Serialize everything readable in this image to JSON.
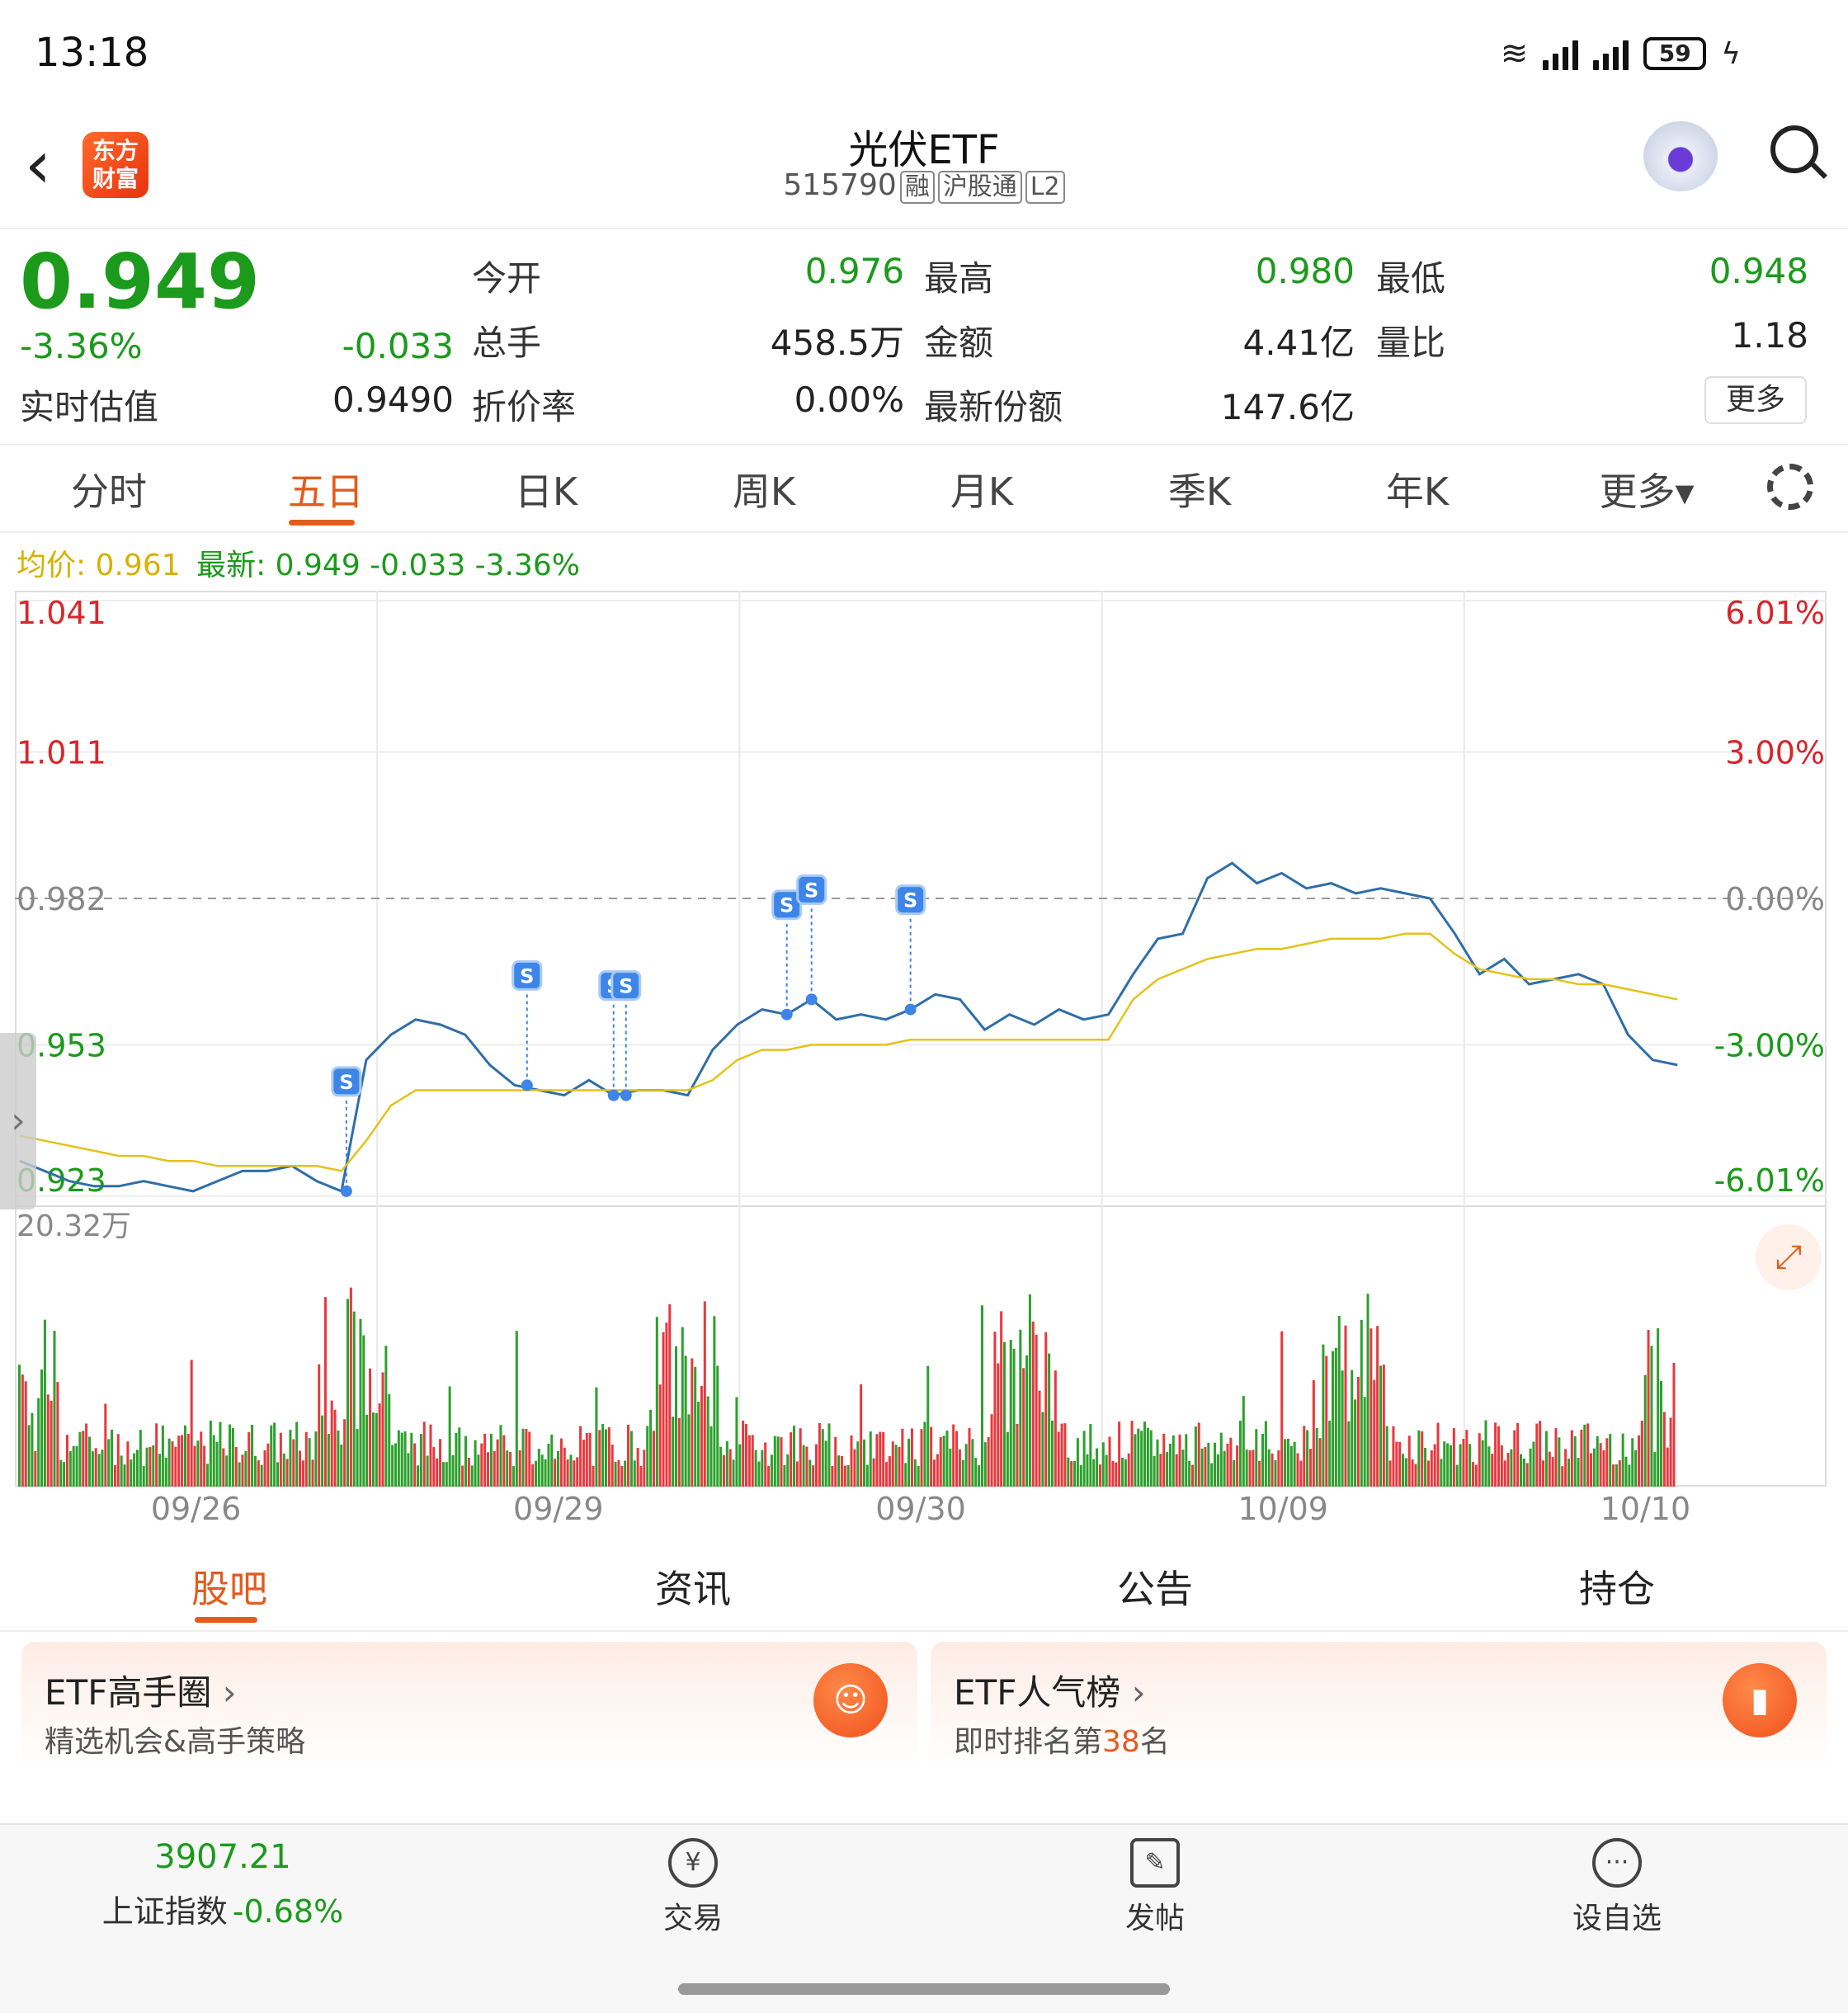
{
  "status_bar": {
    "time": "13:18",
    "battery": "59"
  },
  "header": {
    "logo_line1": "东方",
    "logo_line2": "财富",
    "title": "光伏ETF",
    "code": "515790",
    "tags": [
      "融",
      "沪股通",
      "L2"
    ]
  },
  "quote": {
    "price": "0.949",
    "change_pct": "-3.36%",
    "change": "-0.033",
    "est_label": "实时估值",
    "est_value": "0.9490",
    "fields": [
      {
        "label": "今开",
        "value": "0.976",
        "color": "green"
      },
      {
        "label": "最高",
        "value": "0.980",
        "color": "green"
      },
      {
        "label": "最低",
        "value": "0.948",
        "color": "green"
      },
      {
        "label": "总手",
        "value": "458.5万",
        "color": "dark"
      },
      {
        "label": "金额",
        "value": "4.41亿",
        "color": "dark"
      },
      {
        "label": "量比",
        "value": "1.18",
        "color": "dark"
      },
      {
        "label": "折价率",
        "value": "0.00%",
        "color": "dark"
      },
      {
        "label": "最新份额",
        "value": "147.6亿",
        "color": "dark"
      }
    ],
    "more_label": "更多"
  },
  "tabs": [
    "分时",
    "五日",
    "日K",
    "周K",
    "月K",
    "季K",
    "年K",
    "更多▾"
  ],
  "active_tab": 1,
  "legend": {
    "avg_label": "均价: 0.961",
    "latest_label": "最新: 0.949 -0.033 -3.36%"
  },
  "chart_data": {
    "type": "line",
    "x_labels": [
      "09/26",
      "09/29",
      "09/30",
      "10/09",
      "10/10"
    ],
    "y_left": [
      "1.041",
      "1.011",
      "0.982",
      "0.953",
      "0.923"
    ],
    "y_right": [
      "6.01%",
      "3.00%",
      "0.00%",
      "-3.00%",
      "-6.01%"
    ],
    "ylim": [
      0.923,
      1.041
    ],
    "prev_close": 0.982,
    "volume_max_label": "20.32万",
    "series": [
      {
        "name": "最新",
        "color": "#2f6ea8",
        "values": [
          0.93,
          0.928,
          0.926,
          0.925,
          0.925,
          0.926,
          0.925,
          0.924,
          0.926,
          0.928,
          0.928,
          0.929,
          0.926,
          0.924,
          0.95,
          0.955,
          0.958,
          0.957,
          0.955,
          0.949,
          0.945,
          0.944,
          0.943,
          0.946,
          0.943,
          0.944,
          0.944,
          0.943,
          0.952,
          0.957,
          0.96,
          0.959,
          0.962,
          0.958,
          0.959,
          0.958,
          0.96,
          0.963,
          0.962,
          0.956,
          0.959,
          0.957,
          0.96,
          0.958,
          0.959,
          0.967,
          0.974,
          0.975,
          0.986,
          0.989,
          0.985,
          0.987,
          0.984,
          0.985,
          0.983,
          0.984,
          0.983,
          0.982,
          0.975,
          0.967,
          0.97,
          0.965,
          0.966,
          0.967,
          0.965,
          0.955,
          0.95,
          0.949
        ]
      },
      {
        "name": "均价",
        "color": "#e3c21a",
        "values": [
          0.935,
          0.934,
          0.933,
          0.932,
          0.931,
          0.931,
          0.93,
          0.93,
          0.929,
          0.929,
          0.929,
          0.929,
          0.929,
          0.928,
          0.934,
          0.941,
          0.944,
          0.944,
          0.944,
          0.944,
          0.944,
          0.944,
          0.944,
          0.944,
          0.944,
          0.944,
          0.944,
          0.944,
          0.946,
          0.95,
          0.952,
          0.952,
          0.953,
          0.953,
          0.953,
          0.953,
          0.954,
          0.954,
          0.954,
          0.954,
          0.954,
          0.954,
          0.954,
          0.954,
          0.954,
          0.962,
          0.966,
          0.968,
          0.97,
          0.971,
          0.972,
          0.972,
          0.973,
          0.974,
          0.974,
          0.974,
          0.975,
          0.975,
          0.971,
          0.968,
          0.967,
          0.966,
          0.966,
          0.965,
          0.965,
          0.964,
          0.963,
          0.962
        ]
      }
    ],
    "signals": [
      {
        "label": "S",
        "index": 13.2
      },
      {
        "label": "S",
        "index": 20.5
      },
      {
        "label": "S",
        "index": 24.0
      },
      {
        "label": "S",
        "index": 24.5
      },
      {
        "label": "S",
        "index": 31.0
      },
      {
        "label": "S",
        "index": 32.0
      },
      {
        "label": "S",
        "index": 36.0
      }
    ]
  },
  "sections": {
    "tabs": [
      "股吧",
      "资讯",
      "公告",
      "持仓"
    ],
    "active": 0
  },
  "cards": [
    {
      "title": "ETF高手圈",
      "subtitle": "精选机会&高手策略"
    },
    {
      "title": "ETF人气榜",
      "subtitle_pre": "即时排名第",
      "rank": "38",
      "subtitle_post": "名"
    }
  ],
  "bottom_nav": {
    "index_value": "3907.21",
    "index_name": "上证指数",
    "index_change": "-0.68%",
    "items": [
      "交易",
      "发帖",
      "设自选"
    ]
  }
}
